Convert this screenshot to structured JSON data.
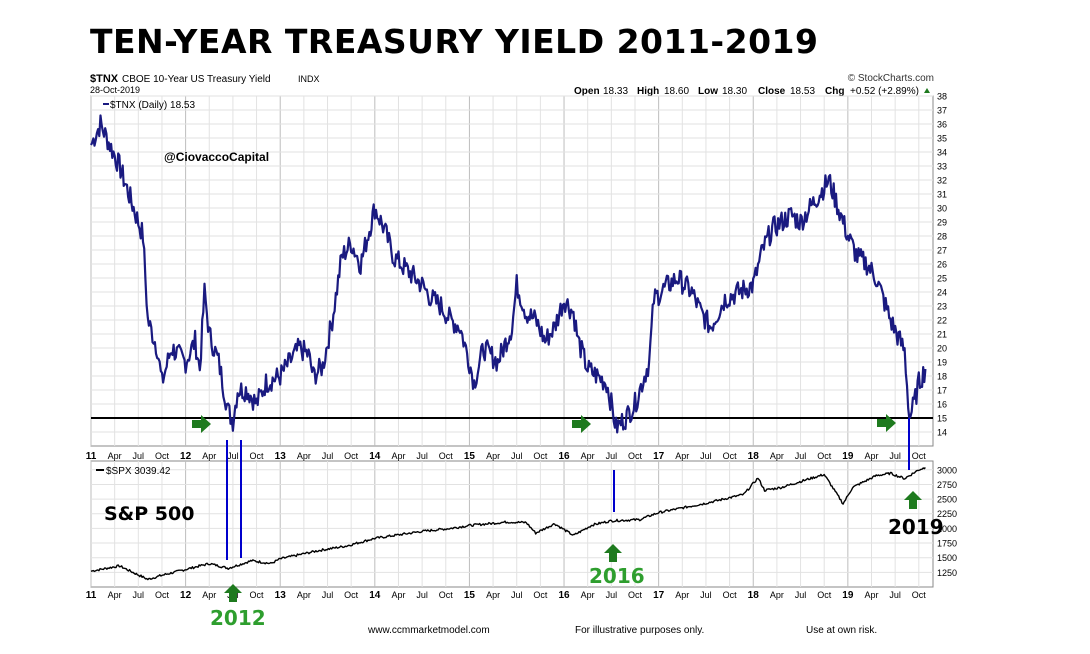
{
  "title": "TEN-YEAR TREASURY YIELD 2011-2019",
  "header": {
    "symbol": "$TNX",
    "description": "CBOE 10-Year US Treasury Yield",
    "exchange": "INDX",
    "date": "28-Oct-2019",
    "copyright": "© StockCharts.com",
    "ohlc": {
      "open_label": "Open",
      "open": "18.33",
      "high_label": "High",
      "high": "18.60",
      "low_label": "Low",
      "low": "18.30",
      "close_label": "Close",
      "close": "18.53",
      "chg_label": "Chg",
      "chg": "+0.52 (+2.89%)"
    },
    "legend_top": "$TNX (Daily) 18.53",
    "legend_bottom": "$SPX 3039.42"
  },
  "annotations": {
    "watermark": "@CiovaccoCapital",
    "spx_label": "S&P 500",
    "label_2012": "2012",
    "label_2016": "2016",
    "label_2019": "2019",
    "footer_url": "www.ccmmarketmodel.com",
    "footer_mid": "For illustrative purposes only.",
    "footer_right": "Use at own risk."
  },
  "colors": {
    "tnx": "#1a1a80",
    "green": "#2e9e2e",
    "arrow": "#1e7a1e",
    "marker": "#0000cc"
  },
  "chart_data": [
    {
      "type": "line",
      "name": "$TNX (Daily)",
      "yaxis": "right",
      "ylim": [
        13,
        38
      ],
      "yticks": [
        14,
        15,
        16,
        17,
        18,
        19,
        20,
        21,
        22,
        23,
        24,
        25,
        26,
        27,
        28,
        29,
        30,
        31,
        32,
        33,
        34,
        35,
        36,
        37,
        38
      ],
      "xticks": [
        "11",
        "Apr",
        "Jul",
        "Oct",
        "12",
        "Apr",
        "Jul",
        "Oct",
        "13",
        "Apr",
        "Jul",
        "Oct",
        "14",
        "Apr",
        "Jul",
        "Oct",
        "15",
        "Apr",
        "Jul",
        "Oct",
        "16",
        "Apr",
        "Jul",
        "Oct",
        "17",
        "Apr",
        "Jul",
        "Oct",
        "18",
        "Apr",
        "Jul",
        "Oct",
        "19",
        "Apr",
        "Jul",
        "Oct"
      ],
      "reference_line": 15,
      "x": [
        2011.0,
        2011.1,
        2011.2,
        2011.3,
        2011.45,
        2011.55,
        2011.6,
        2011.7,
        2011.75,
        2011.85,
        2012.0,
        2012.1,
        2012.15,
        2012.2,
        2012.25,
        2012.35,
        2012.45,
        2012.5,
        2012.55,
        2012.65,
        2012.75,
        2012.85,
        2013.0,
        2013.1,
        2013.2,
        2013.3,
        2013.35,
        2013.45,
        2013.55,
        2013.65,
        2013.75,
        2013.85,
        2014.0,
        2014.1,
        2014.2,
        2014.35,
        2014.5,
        2014.6,
        2014.7,
        2014.8,
        2014.9,
        2015.0,
        2015.05,
        2015.15,
        2015.3,
        2015.45,
        2015.5,
        2015.6,
        2015.7,
        2015.8,
        2015.9,
        2016.0,
        2016.1,
        2016.15,
        2016.25,
        2016.35,
        2016.45,
        2016.5,
        2016.55,
        2016.65,
        2016.75,
        2016.85,
        2016.9,
        2016.95,
        2017.1,
        2017.2,
        2017.35,
        2017.45,
        2017.55,
        2017.7,
        2017.85,
        2018.0,
        2018.1,
        2018.2,
        2018.3,
        2018.4,
        2018.5,
        2018.6,
        2018.75,
        2018.8,
        2018.9,
        2019.0,
        2019.1,
        2019.2,
        2019.3,
        2019.35,
        2019.45,
        2019.55,
        2019.6,
        2019.65,
        2019.7,
        2019.75,
        2019.82
      ],
      "y": [
        34.5,
        36,
        34.5,
        33,
        30,
        28,
        22,
        20,
        17.5,
        20,
        19,
        20.5,
        18.5,
        24,
        21,
        19,
        15.5,
        14.8,
        17,
        17,
        16,
        17.5,
        18,
        19,
        20,
        19.5,
        18,
        18.7,
        22,
        26.5,
        27.5,
        26,
        30,
        28.5,
        26.5,
        25.5,
        24.5,
        23.5,
        23,
        22,
        21.5,
        19,
        17.5,
        20,
        19,
        21.5,
        24.5,
        22.5,
        22,
        20.5,
        21.5,
        23.5,
        22.5,
        20.5,
        18.5,
        18,
        17.5,
        16,
        14.3,
        15,
        16,
        18,
        19,
        23.5,
        24.5,
        25,
        24,
        22.5,
        21.5,
        23.5,
        24,
        24.5,
        27,
        28.5,
        29,
        29.5,
        29,
        30,
        31.5,
        32,
        30,
        28,
        26.5,
        26,
        25,
        24,
        22,
        20.5,
        19.8,
        15,
        16,
        17.5,
        18.5
      ]
    },
    {
      "type": "line",
      "name": "$SPX",
      "yaxis": "right",
      "ylim": [
        1000,
        3150
      ],
      "yticks": [
        1250,
        1500,
        1750,
        2000,
        2250,
        2500,
        2750,
        3000
      ],
      "xticks": [
        "11",
        "Apr",
        "Jul",
        "Oct",
        "12",
        "Apr",
        "Jul",
        "Oct",
        "13",
        "Apr",
        "Jul",
        "Oct",
        "14",
        "Apr",
        "Jul",
        "Oct",
        "15",
        "Apr",
        "Jul",
        "Oct",
        "16",
        "Apr",
        "Jul",
        "Oct",
        "17",
        "Apr",
        "Jul",
        "Oct",
        "18",
        "Apr",
        "Jul",
        "Oct",
        "19",
        "Apr",
        "Jul",
        "Oct"
      ],
      "x": [
        2011.0,
        2011.3,
        2011.6,
        2011.75,
        2012.0,
        2012.25,
        2012.45,
        2012.7,
        2012.9,
        2013.0,
        2013.4,
        2013.7,
        2014.0,
        2014.5,
        2014.8,
        2015.0,
        2015.4,
        2015.6,
        2015.7,
        2015.9,
        2016.1,
        2016.3,
        2016.5,
        2016.8,
        2017.0,
        2017.5,
        2017.9,
        2018.05,
        2018.12,
        2018.3,
        2018.6,
        2018.75,
        2018.95,
        2019.05,
        2019.3,
        2019.45,
        2019.6,
        2019.75,
        2019.82
      ],
      "y": [
        1270,
        1360,
        1130,
        1200,
        1300,
        1400,
        1320,
        1450,
        1400,
        1480,
        1620,
        1700,
        1830,
        1950,
        2000,
        2050,
        2110,
        2100,
        1920,
        2080,
        1880,
        2060,
        2130,
        2150,
        2270,
        2430,
        2580,
        2860,
        2650,
        2700,
        2850,
        2920,
        2420,
        2700,
        2900,
        2940,
        2850,
        3000,
        3039
      ]
    }
  ]
}
